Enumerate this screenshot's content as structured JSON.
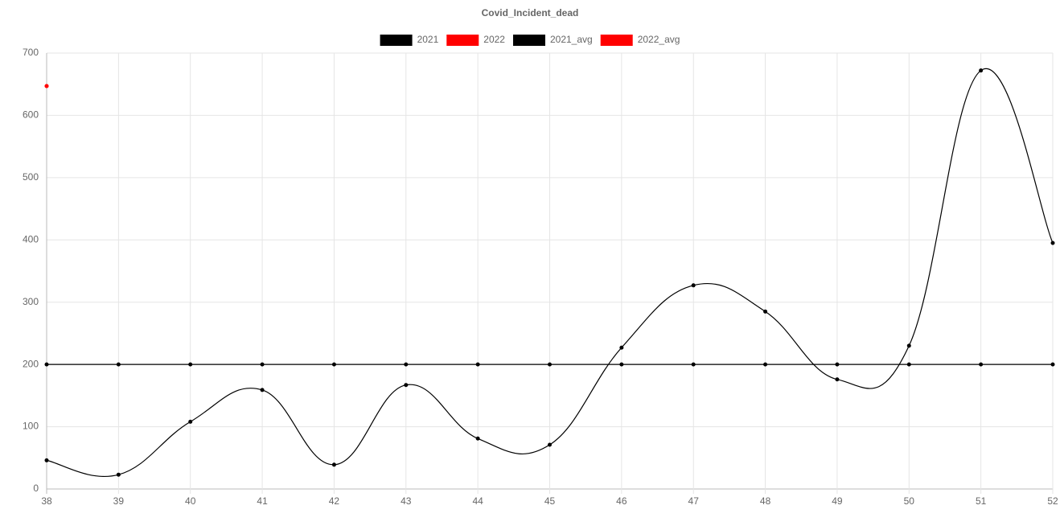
{
  "chart_data": {
    "type": "line",
    "title": "Covid_Incident_dead",
    "categories": [
      "38",
      "39",
      "40",
      "41",
      "42",
      "43",
      "44",
      "45",
      "46",
      "47",
      "48",
      "49",
      "50",
      "51",
      "52"
    ],
    "series": [
      {
        "name": "2021",
        "color": "#000000",
        "values": [
          46,
          23,
          108,
          159,
          39,
          167,
          81,
          71,
          227,
          327,
          285,
          176,
          230,
          672,
          395
        ]
      },
      {
        "name": "2022",
        "color": "#ff0000",
        "values": [
          647,
          null,
          null,
          null,
          null,
          null,
          null,
          null,
          null,
          null,
          null,
          null,
          null,
          null,
          null
        ]
      },
      {
        "name": "2021_avg",
        "color": "#000000",
        "values": [
          200,
          200,
          200,
          200,
          200,
          200,
          200,
          200,
          200,
          200,
          200,
          200,
          200,
          200,
          200
        ]
      },
      {
        "name": "2022_avg",
        "color": "#ff0000",
        "values": [
          647,
          null,
          null,
          null,
          null,
          null,
          null,
          null,
          null,
          null,
          null,
          null,
          null,
          null,
          null
        ]
      }
    ],
    "ylim": [
      0,
      700
    ],
    "yticks": [
      0,
      100,
      200,
      300,
      400,
      500,
      600,
      700
    ],
    "grid": true,
    "legend": "top"
  }
}
